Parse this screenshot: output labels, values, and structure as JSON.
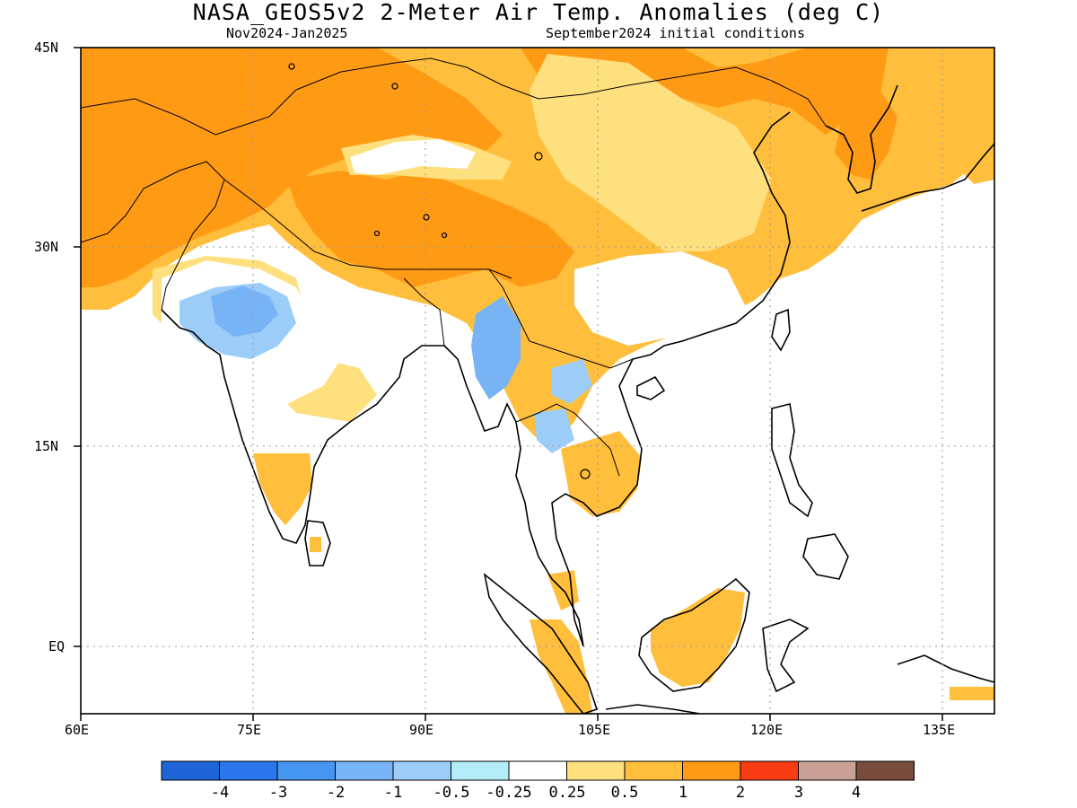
{
  "header": {
    "title": "NASA_GEOS5v2 2-Meter Air Temp. Anomalies (deg C)",
    "period": "Nov2024-Jan2025",
    "init": "September2024 initial conditions"
  },
  "axes": {
    "lon_labels": [
      "60E",
      "75E",
      "90E",
      "105E",
      "120E",
      "135E"
    ],
    "lat_labels": [
      "45N",
      "30N",
      "15N",
      "EQ"
    ],
    "lon_range": [
      60,
      139.5
    ],
    "lat_range": [
      -5,
      45
    ],
    "lon_ticks": [
      60,
      75,
      90,
      105,
      120,
      135
    ],
    "lat_ticks": [
      45,
      30,
      15,
      0
    ],
    "grid": "dotted"
  },
  "colorbar": {
    "colors": [
      "#1e64d6",
      "#2a76ec",
      "#4696f2",
      "#78b4f5",
      "#9ccdf8",
      "#b4ecf8",
      "#ffffff",
      "#ffe07f",
      "#ffbe3c",
      "#ff9a14",
      "#fa3c14",
      "#c8a096",
      "#784b3c"
    ],
    "labels": [
      "-4",
      "-3",
      "-2",
      "-1",
      "-0.5",
      "-0.25",
      "0.25",
      "0.5",
      "1",
      "2",
      "3",
      "4"
    ]
  }
}
